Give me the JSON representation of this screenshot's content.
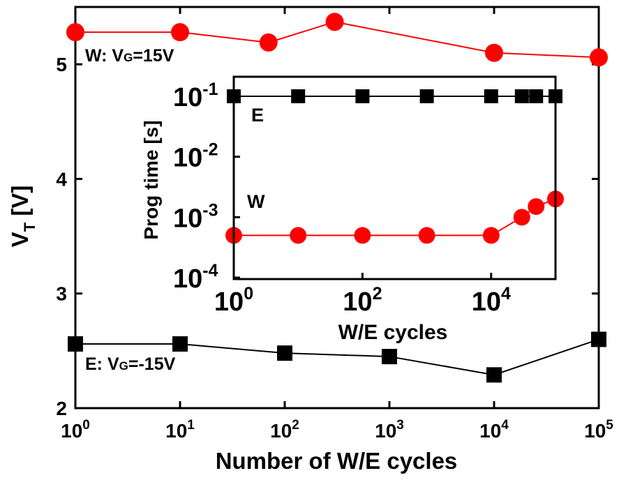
{
  "chart_data": [
    {
      "type": "line",
      "xlabel": "Number of W/E cycles",
      "ylabel_main": "V",
      "ylabel_sub": "T",
      "ylabel_unit": " [V]",
      "xscale": "log",
      "xlim": [
        1,
        100000
      ],
      "ylim": [
        2,
        5.5
      ],
      "x_ticks": [
        {
          "base": "10",
          "exp": "0",
          "value": 1
        },
        {
          "base": "10",
          "exp": "1",
          "value": 10
        },
        {
          "base": "10",
          "exp": "2",
          "value": 100
        },
        {
          "base": "10",
          "exp": "3",
          "value": 1000
        },
        {
          "base": "10",
          "exp": "4",
          "value": 10000
        },
        {
          "base": "10",
          "exp": "5",
          "value": 100000
        }
      ],
      "y_ticks": [
        {
          "label": "2",
          "value": 2
        },
        {
          "label": "3",
          "value": 3
        },
        {
          "label": "4",
          "value": 4
        },
        {
          "label": "5",
          "value": 5
        }
      ],
      "grid": false,
      "series": [
        {
          "name": "W: VG=15V",
          "color": "#ff0000",
          "marker": "circle",
          "x": [
            1,
            10,
            70,
            300,
            10000,
            100000
          ],
          "y": [
            5.28,
            5.28,
            5.19,
            5.37,
            5.1,
            5.06
          ]
        },
        {
          "name": "E: VG=-15V",
          "color": "#000000",
          "marker": "square",
          "x": [
            1,
            10,
            100,
            1000,
            10000,
            100000
          ],
          "y": [
            2.56,
            2.56,
            2.48,
            2.45,
            2.29,
            2.6
          ]
        }
      ],
      "annotations": [
        {
          "id": "w",
          "prefix": "W: V",
          "sub": "G",
          "suffix": "=15V"
        },
        {
          "id": "e",
          "prefix": "E: V",
          "sub": "G",
          "suffix": "=-15V"
        }
      ]
    },
    {
      "type": "line",
      "xlabel": "W/E cycles",
      "ylabel": "Prog time [s]",
      "xscale": "log",
      "yscale": "log",
      "xlim": [
        1,
        100000
      ],
      "ylim": [
        0.0001,
        0.1
      ],
      "x_ticks": [
        {
          "base": "10",
          "exp": "0",
          "value": 1
        },
        {
          "base": "10",
          "exp": "2",
          "value": 100
        },
        {
          "base": "10",
          "exp": "4",
          "value": 10000
        }
      ],
      "y_ticks": [
        {
          "base": "10",
          "exp": "-1",
          "value": 0.1
        },
        {
          "base": "10",
          "exp": "-2",
          "value": 0.01
        },
        {
          "base": "10",
          "exp": "-3",
          "value": 0.001
        },
        {
          "base": "10",
          "exp": "-4",
          "value": 0.0001
        }
      ],
      "grid": false,
      "series": [
        {
          "name": "E",
          "color": "#000000",
          "marker": "square",
          "x": [
            1,
            10,
            100,
            1000,
            10000,
            30000,
            50000,
            100000
          ],
          "y": [
            0.1,
            0.1,
            0.1,
            0.1,
            0.1,
            0.1,
            0.1,
            0.1
          ]
        },
        {
          "name": "W",
          "color": "#ff0000",
          "marker": "circle",
          "x": [
            1,
            10,
            100,
            1000,
            10000,
            30000,
            50000,
            100000
          ],
          "y": [
            0.0005,
            0.0005,
            0.0005,
            0.0005,
            0.0005,
            0.001,
            0.0015,
            0.002
          ]
        }
      ]
    }
  ]
}
